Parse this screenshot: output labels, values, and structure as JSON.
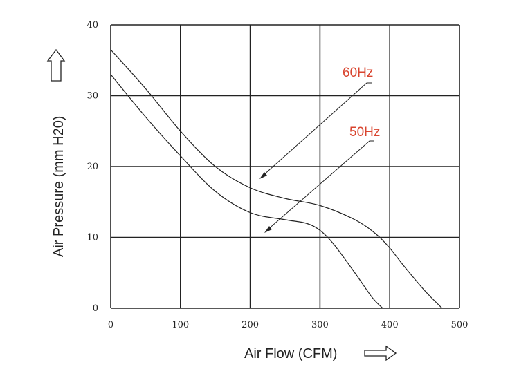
{
  "chart_data": {
    "type": "line",
    "title": "",
    "xlabel": "Air Flow (CFM)",
    "ylabel": "Air Pressure (mm H20)",
    "xlim": [
      0,
      500
    ],
    "ylim": [
      0,
      40
    ],
    "xticks": [
      "0",
      "100",
      "200",
      "300",
      "400",
      "500"
    ],
    "yticks": [
      "0",
      "10",
      "20",
      "30",
      "40"
    ],
    "grid": true,
    "legend": "none",
    "series": [
      {
        "name": "60Hz",
        "label_color": "#d9452f",
        "x": [
          0,
          50,
          100,
          150,
          200,
          250,
          300,
          350,
          380,
          400,
          420,
          450,
          475
        ],
        "y": [
          36.5,
          31,
          25,
          20,
          17,
          15.5,
          14.5,
          12.5,
          10.5,
          8.5,
          6,
          2.5,
          0
        ]
      },
      {
        "name": "50Hz",
        "label_color": "#d9452f",
        "x": [
          0,
          50,
          100,
          150,
          200,
          250,
          280,
          300,
          320,
          350,
          375,
          390
        ],
        "y": [
          33,
          27,
          21.5,
          16.5,
          13.5,
          12.5,
          12,
          11,
          9,
          5,
          1.5,
          0
        ]
      }
    ]
  }
}
